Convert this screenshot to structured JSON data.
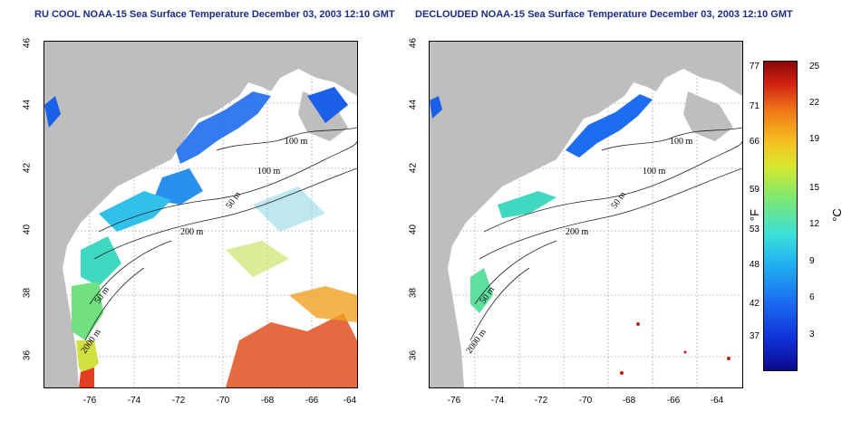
{
  "titles": {
    "left": "RU COOL NOAA-15 Sea Surface Temperature December 03, 2003 12:10 GMT",
    "right": "DECLOUDED NOAA-15 Sea Surface Temperature December 03, 2003 12:10 GMT"
  },
  "axes": {
    "x_ticks": [
      "-76",
      "-74",
      "-72",
      "-70",
      "-68",
      "-66",
      "-64"
    ],
    "y_ticks": [
      "36",
      "38",
      "40",
      "42",
      "44",
      "46"
    ]
  },
  "contour_labels": {
    "left": [
      "100 m",
      "100 m",
      "50 m",
      "200 m",
      "50 m",
      "2000 m"
    ],
    "right": [
      "100 m",
      "100 m",
      "50 m",
      "200 m",
      "50 m",
      "2000 m"
    ]
  },
  "colorbar": {
    "f_labels": [
      "77",
      "71",
      "66",
      "59",
      "53",
      "48",
      "42",
      "37"
    ],
    "c_labels": [
      "25",
      "22",
      "19",
      "15",
      "12",
      "9",
      "6",
      "3"
    ],
    "f_unit": "°F",
    "c_unit": "°C"
  },
  "colors": {
    "land": "#bebebe",
    "title": "#1a2b8f",
    "grid": "#b0b0b0"
  }
}
